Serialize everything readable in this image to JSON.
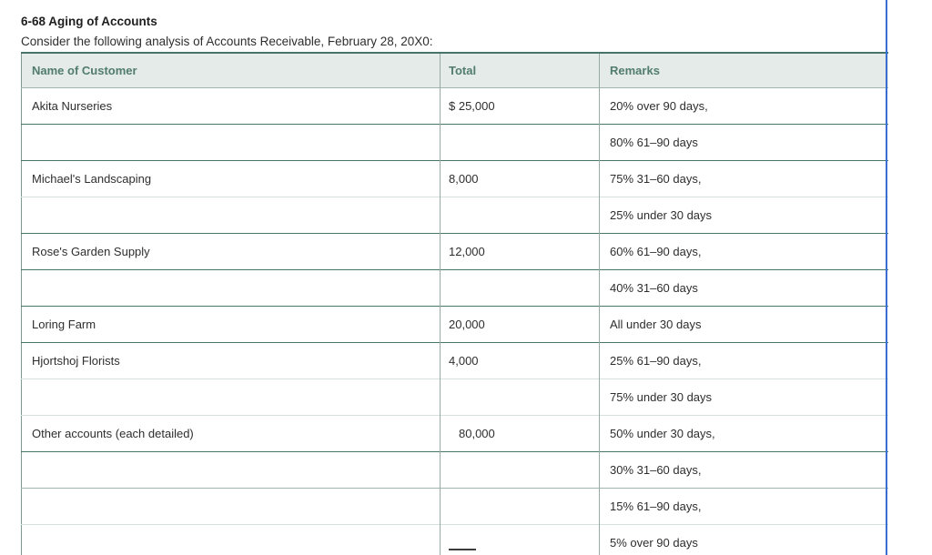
{
  "title": "6-68 Aging of Accounts",
  "subtitle": "Consider the following analysis of Accounts Receivable, February 28, 20X0:",
  "table": {
    "headers": [
      "Name of Customer",
      "Total",
      "Remarks"
    ],
    "rows": [
      {
        "name": "Akita Nurseries",
        "total": "$ 25,000",
        "remarks": "20% over 90 days,"
      },
      {
        "name": "",
        "total": "",
        "remarks": "80% 61–90 days"
      },
      {
        "name": "Michael's Landscaping",
        "total": "8,000",
        "remarks": "75% 31–60 days,"
      },
      {
        "name": "",
        "total": "",
        "remarks": "25% under 30 days"
      },
      {
        "name": "Rose's Garden Supply",
        "total": "12,000",
        "remarks": "60% 61–90 days,"
      },
      {
        "name": "",
        "total": "",
        "remarks": "40% 31–60 days"
      },
      {
        "name": "Loring Farm",
        "total": "20,000",
        "remarks": "All under 30 days"
      },
      {
        "name": "Hjortshoj Florists",
        "total": "4,000",
        "remarks": "25% 61–90 days,"
      },
      {
        "name": "",
        "total": "",
        "remarks": "75% under 30 days"
      },
      {
        "name": "Other accounts (each detailed)",
        "total": "80,000",
        "remarks": "50% under 30 days,"
      },
      {
        "name": "",
        "total": "",
        "remarks": "30% 31–60 days,"
      },
      {
        "name": "",
        "total": "",
        "remarks": "15% 61–90 days,"
      },
      {
        "name": "",
        "total": "",
        "remarks": "5% over 90 days"
      }
    ]
  },
  "colors": {
    "header_bg": "#e4ebe8",
    "header_text": "#527c6d",
    "border_dark": "#47756a",
    "border_medium": "#9fb5ae",
    "border_pale": "#d5e1dc",
    "right_edge_blue": "#3a6fd1"
  }
}
